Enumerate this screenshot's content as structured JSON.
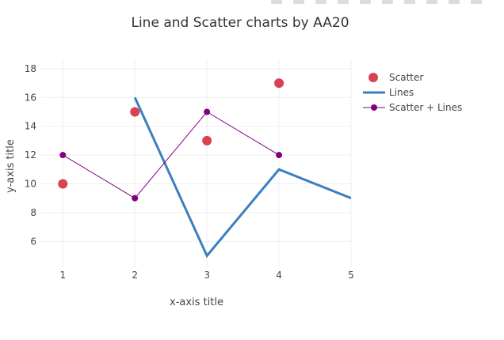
{
  "chart_data": {
    "type": "line",
    "title": "Line and Scatter charts by AA20",
    "xlabel": "x-axis title",
    "ylabel": "y-axis title",
    "xlim": [
      0.7,
      5
    ],
    "ylim": [
      4.2,
      18.6
    ],
    "x_ticks": [
      "1",
      "2",
      "3",
      "4",
      "5"
    ],
    "y_ticks": [
      "6",
      "8",
      "10",
      "12",
      "14",
      "16",
      "18"
    ],
    "grid": true,
    "legend_position": "right",
    "series": [
      {
        "name": "Scatter",
        "mode": "markers",
        "color": "#d9434f",
        "x": [
          1,
          2,
          3,
          4
        ],
        "y": [
          10,
          15,
          13,
          17
        ]
      },
      {
        "name": "Lines",
        "mode": "lines",
        "color": "#3a7fbf",
        "x": [
          2,
          3,
          4,
          5
        ],
        "y": [
          16,
          5,
          11,
          9
        ]
      },
      {
        "name": "Scatter + Lines",
        "mode": "lines+markers",
        "color": "#800080",
        "x": [
          1,
          2,
          3,
          4
        ],
        "y": [
          12,
          9,
          15,
          12
        ]
      }
    ]
  }
}
